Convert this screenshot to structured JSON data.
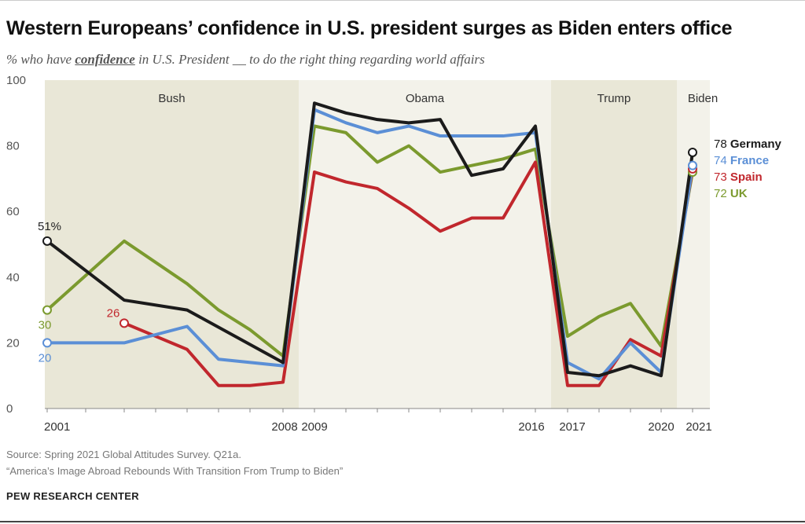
{
  "title": "Western Europeans’ confidence in U.S. president surges as Biden enters office",
  "subtitle": {
    "pre": "% who have ",
    "emph": "confidence",
    "post": " in U.S. President __ to do the right thing regarding world affairs"
  },
  "chart_data": {
    "type": "line",
    "ylim": [
      0,
      100
    ],
    "yticks": [
      0,
      20,
      40,
      60,
      80,
      100
    ],
    "grid": false,
    "eras": [
      {
        "name": "Bush",
        "start": 2001,
        "end": 2008,
        "color": "#e9e7d7"
      },
      {
        "name": "Obama",
        "start": 2009,
        "end": 2016,
        "color": "#f3f2ea"
      },
      {
        "name": "Trump",
        "start": 2017,
        "end": 2020,
        "color": "#e9e7d7"
      },
      {
        "name": "Biden",
        "start": 2021,
        "end": 2021,
        "color": "#f3f2ea"
      }
    ],
    "xtick_labels": [
      "2001",
      "2008",
      "2009",
      "2016",
      "2017",
      "2020",
      "2021"
    ],
    "series": [
      {
        "name": "UK",
        "color": "#7b9a2e",
        "points": [
          [
            2001,
            30
          ],
          [
            2003,
            51
          ],
          [
            2005,
            38
          ],
          [
            2006,
            30
          ],
          [
            2007,
            24
          ],
          [
            2008,
            16
          ],
          [
            2009,
            86
          ],
          [
            2010,
            84
          ],
          [
            2011,
            75
          ],
          [
            2012,
            80
          ],
          [
            2013,
            72
          ],
          [
            2014,
            74
          ],
          [
            2015,
            76
          ],
          [
            2016,
            79
          ],
          [
            2017,
            22
          ],
          [
            2018,
            28
          ],
          [
            2019,
            32
          ],
          [
            2020,
            19
          ],
          [
            2021,
            72
          ]
        ]
      },
      {
        "name": "Spain",
        "color": "#c1272d",
        "points": [
          [
            2003,
            26
          ],
          [
            2005,
            18
          ],
          [
            2006,
            7
          ],
          [
            2007,
            7
          ],
          [
            2008,
            8
          ],
          [
            2009,
            72
          ],
          [
            2010,
            69
          ],
          [
            2011,
            67
          ],
          [
            2012,
            61
          ],
          [
            2013,
            54
          ],
          [
            2014,
            58
          ],
          [
            2015,
            58
          ],
          [
            2016,
            75
          ],
          [
            2017,
            7
          ],
          [
            2018,
            7
          ],
          [
            2019,
            21
          ],
          [
            2020,
            16
          ],
          [
            2021,
            73
          ]
        ]
      },
      {
        "name": "France",
        "color": "#5b8fd6",
        "points": [
          [
            2001,
            20
          ],
          [
            2003,
            20
          ],
          [
            2005,
            25
          ],
          [
            2006,
            15
          ],
          [
            2008,
            13
          ],
          [
            2009,
            91
          ],
          [
            2010,
            87
          ],
          [
            2011,
            84
          ],
          [
            2012,
            86
          ],
          [
            2013,
            83
          ],
          [
            2014,
            83
          ],
          [
            2015,
            83
          ],
          [
            2016,
            84
          ],
          [
            2017,
            14
          ],
          [
            2018,
            9
          ],
          [
            2019,
            20
          ],
          [
            2020,
            11
          ],
          [
            2021,
            74
          ]
        ]
      },
      {
        "name": "Germany",
        "color": "#1b1b1b",
        "points": [
          [
            2001,
            51
          ],
          [
            2003,
            33
          ],
          [
            2005,
            30
          ],
          [
            2008,
            14
          ],
          [
            2009,
            93
          ],
          [
            2010,
            90
          ],
          [
            2011,
            88
          ],
          [
            2012,
            87
          ],
          [
            2013,
            88
          ],
          [
            2014,
            71
          ],
          [
            2015,
            73
          ],
          [
            2016,
            86
          ],
          [
            2017,
            11
          ],
          [
            2018,
            10
          ],
          [
            2019,
            13
          ],
          [
            2020,
            10
          ],
          [
            2021,
            78
          ]
        ]
      }
    ],
    "start_labels": [
      {
        "series": "Germany",
        "text": "51%"
      },
      {
        "series": "UK",
        "text": "30"
      },
      {
        "series": "Spain",
        "text": "26"
      },
      {
        "series": "France",
        "text": "20"
      }
    ],
    "end_labels": [
      {
        "series": "Germany",
        "value": "78",
        "name": "Germany"
      },
      {
        "series": "France",
        "value": "74",
        "name": "France"
      },
      {
        "series": "Spain",
        "value": "73",
        "name": "Spain"
      },
      {
        "series": "UK",
        "value": "72",
        "name": "UK"
      }
    ]
  },
  "footer": {
    "source": "Source: Spring 2021 Global Attitudes Survey. Q21a.",
    "report": "“America’s Image Abroad Rebounds With Transition From Trump to Biden”",
    "brand": "PEW RESEARCH CENTER"
  }
}
